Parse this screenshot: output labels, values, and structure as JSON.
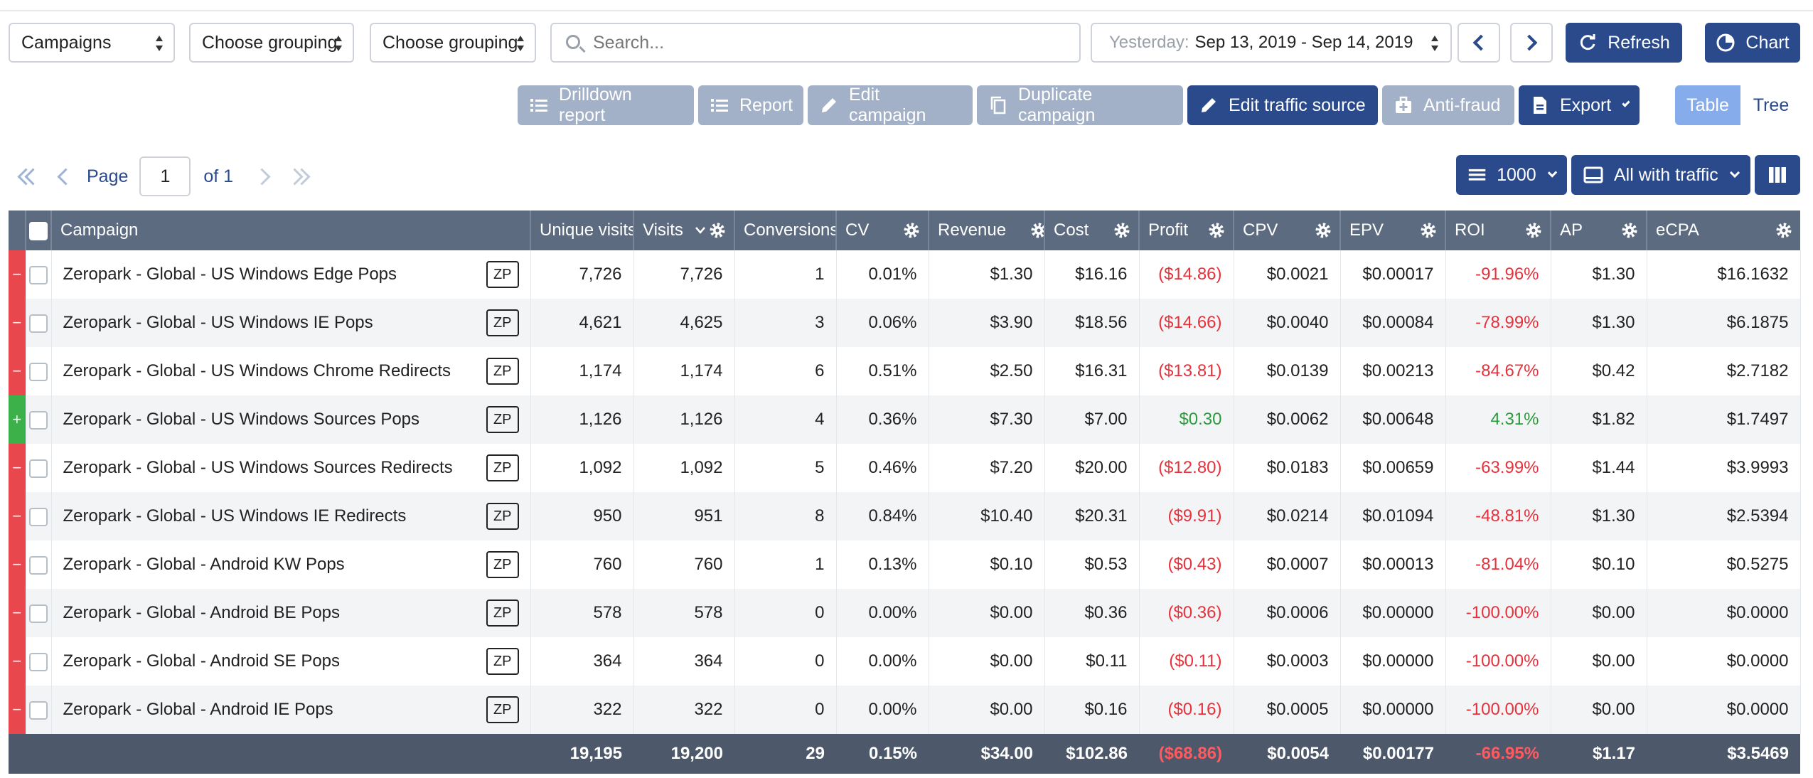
{
  "filters": {
    "report_type": "Campaigns",
    "grouping1": "Choose grouping",
    "grouping2": "Choose grouping",
    "search_placeholder": "Search...",
    "date_prefix": "Yesterday:",
    "date_range": "Sep 13, 2019 - Sep 14, 2019"
  },
  "top_buttons": {
    "refresh": "Refresh",
    "chart": "Chart"
  },
  "toolbar": {
    "drilldown": "Drilldown report",
    "report": "Report",
    "edit_campaign": "Edit campaign",
    "duplicate_campaign": "Duplicate campaign",
    "edit_traffic_source": "Edit traffic source",
    "anti_fraud": "Anti-fraud",
    "export": "Export",
    "view_table": "Table",
    "view_tree": "Tree"
  },
  "pager": {
    "page_label": "Page",
    "page": "1",
    "of_label": "of 1"
  },
  "rows_per_page": "1000",
  "traffic_filter": "All with traffic",
  "columns": [
    "Campaign",
    "Unique visits",
    "Visits",
    "Conversions",
    "CV",
    "Revenue",
    "Cost",
    "Profit",
    "CPV",
    "EPV",
    "ROI",
    "AP",
    "eCPA"
  ],
  "rows": [
    {
      "status": "−",
      "name": "Zeropark - Global - US Windows Edge Pops",
      "badge": "ZP",
      "unique": "7,726",
      "visits": "7,726",
      "conv": "1",
      "cv": "0.01%",
      "revenue": "$1.30",
      "cost": "$16.16",
      "profit": "($14.86)",
      "cpv": "$0.0021",
      "epv": "$0.00017",
      "roi": "-91.96%",
      "ap": "$1.30",
      "ecpa": "$16.1632"
    },
    {
      "status": "−",
      "name": "Zeropark - Global - US Windows IE Pops",
      "badge": "ZP",
      "unique": "4,621",
      "visits": "4,625",
      "conv": "3",
      "cv": "0.06%",
      "revenue": "$3.90",
      "cost": "$18.56",
      "profit": "($14.66)",
      "cpv": "$0.0040",
      "epv": "$0.00084",
      "roi": "-78.99%",
      "ap": "$1.30",
      "ecpa": "$6.1875"
    },
    {
      "status": "−",
      "name": "Zeropark - Global - US Windows Chrome Redirects",
      "badge": "ZP",
      "unique": "1,174",
      "visits": "1,174",
      "conv": "6",
      "cv": "0.51%",
      "revenue": "$2.50",
      "cost": "$16.31",
      "profit": "($13.81)",
      "cpv": "$0.0139",
      "epv": "$0.00213",
      "roi": "-84.67%",
      "ap": "$0.42",
      "ecpa": "$2.7182"
    },
    {
      "status": "+",
      "name": "Zeropark - Global - US Windows Sources Pops",
      "badge": "ZP",
      "unique": "1,126",
      "visits": "1,126",
      "conv": "4",
      "cv": "0.36%",
      "revenue": "$7.30",
      "cost": "$7.00",
      "profit": "$0.30",
      "cpv": "$0.0062",
      "epv": "$0.00648",
      "roi": "4.31%",
      "ap": "$1.82",
      "ecpa": "$1.7497"
    },
    {
      "status": "−",
      "name": "Zeropark - Global - US Windows Sources Redirects",
      "badge": "ZP",
      "unique": "1,092",
      "visits": "1,092",
      "conv": "5",
      "cv": "0.46%",
      "revenue": "$7.20",
      "cost": "$20.00",
      "profit": "($12.80)",
      "cpv": "$0.0183",
      "epv": "$0.00659",
      "roi": "-63.99%",
      "ap": "$1.44",
      "ecpa": "$3.9993"
    },
    {
      "status": "−",
      "name": "Zeropark - Global - US Windows IE Redirects",
      "badge": "ZP",
      "unique": "950",
      "visits": "951",
      "conv": "8",
      "cv": "0.84%",
      "revenue": "$10.40",
      "cost": "$20.31",
      "profit": "($9.91)",
      "cpv": "$0.0214",
      "epv": "$0.01094",
      "roi": "-48.81%",
      "ap": "$1.30",
      "ecpa": "$2.5394"
    },
    {
      "status": "−",
      "name": "Zeropark - Global - Android KW Pops",
      "badge": "ZP",
      "unique": "760",
      "visits": "760",
      "conv": "1",
      "cv": "0.13%",
      "revenue": "$0.10",
      "cost": "$0.53",
      "profit": "($0.43)",
      "cpv": "$0.0007",
      "epv": "$0.00013",
      "roi": "-81.04%",
      "ap": "$0.10",
      "ecpa": "$0.5275"
    },
    {
      "status": "−",
      "name": "Zeropark - Global - Android BE Pops",
      "badge": "ZP",
      "unique": "578",
      "visits": "578",
      "conv": "0",
      "cv": "0.00%",
      "revenue": "$0.00",
      "cost": "$0.36",
      "profit": "($0.36)",
      "cpv": "$0.0006",
      "epv": "$0.00000",
      "roi": "-100.00%",
      "ap": "$0.00",
      "ecpa": "$0.0000"
    },
    {
      "status": "−",
      "name": "Zeropark - Global - Android SE Pops",
      "badge": "ZP",
      "unique": "364",
      "visits": "364",
      "conv": "0",
      "cv": "0.00%",
      "revenue": "$0.00",
      "cost": "$0.11",
      "profit": "($0.11)",
      "cpv": "$0.0003",
      "epv": "$0.00000",
      "roi": "-100.00%",
      "ap": "$0.00",
      "ecpa": "$0.0000"
    },
    {
      "status": "−",
      "name": "Zeropark - Global - Android IE Pops",
      "badge": "ZP",
      "unique": "322",
      "visits": "322",
      "conv": "0",
      "cv": "0.00%",
      "revenue": "$0.00",
      "cost": "$0.16",
      "profit": "($0.16)",
      "cpv": "$0.0005",
      "epv": "$0.00000",
      "roi": "-100.00%",
      "ap": "$0.00",
      "ecpa": "$0.0000"
    }
  ],
  "totals": {
    "unique": "19,195",
    "visits": "19,200",
    "conv": "29",
    "cv": "0.15%",
    "revenue": "$34.00",
    "cost": "$102.86",
    "profit": "($68.86)",
    "cpv": "$0.0054",
    "epv": "$0.00177",
    "roi": "-66.95%",
    "ap": "$1.17",
    "ecpa": "$3.5469"
  },
  "colors": {
    "primary": "#2a4a8c",
    "disabled": "#a3b1c8",
    "header": "#5d6b80",
    "negative": "#e8474d",
    "positive": "#3cb14a"
  }
}
